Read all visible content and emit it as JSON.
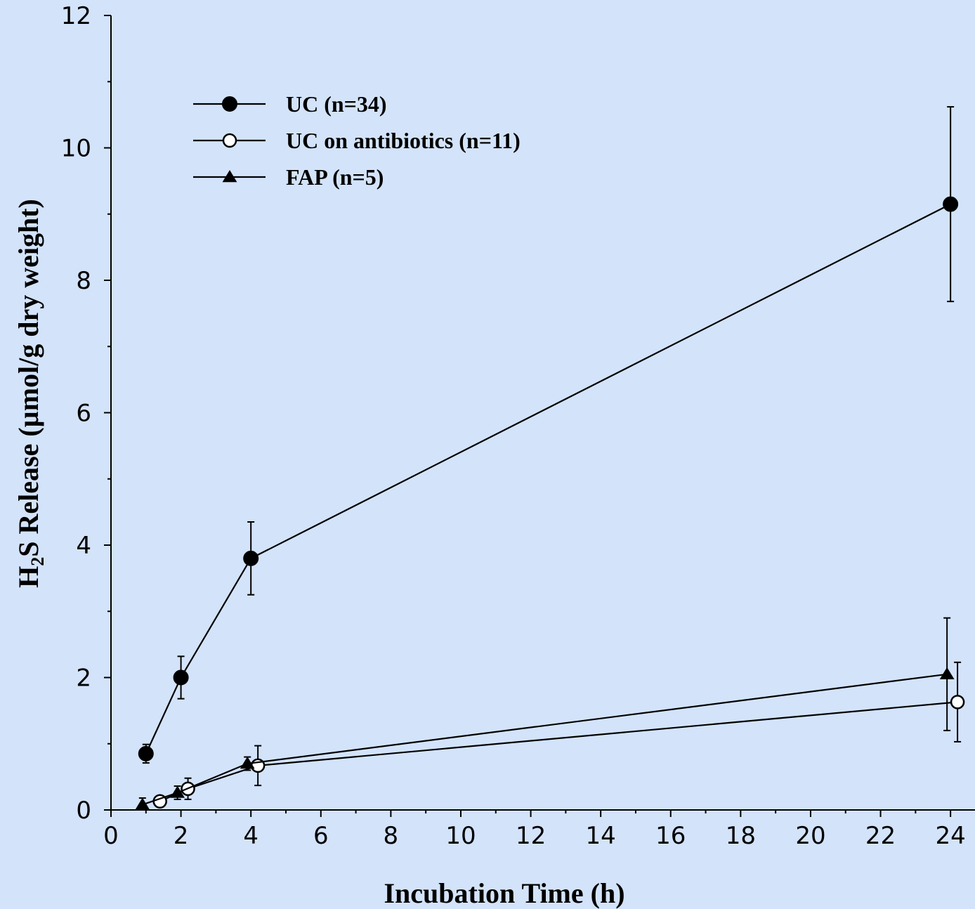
{
  "chart_data": {
    "type": "line",
    "title": "",
    "xlabel": "Incubation Time (h)",
    "ylabel": {
      "prefix": "H",
      "subscript": "2",
      "rest": "S Release (µmol/g dry weight)"
    },
    "xlim": [
      0,
      24.7
    ],
    "ylim": [
      0,
      12
    ],
    "x_ticks": [
      "0",
      "2",
      "4",
      "6",
      "8",
      "10",
      "12",
      "14",
      "16",
      "18",
      "20",
      "22",
      "24"
    ],
    "y_ticks": [
      "0",
      "2",
      "4",
      "6",
      "8",
      "10",
      "12"
    ],
    "x_tick_values": [
      0,
      2,
      4,
      6,
      8,
      10,
      12,
      14,
      16,
      18,
      20,
      22,
      24
    ],
    "y_tick_values": [
      0,
      2,
      4,
      6,
      8,
      10,
      12
    ],
    "grid": false,
    "legend_position": "top-left",
    "series": [
      {
        "name": "UC (n=34)",
        "marker": "filled-circle",
        "points": [
          {
            "x": 1.0,
            "y": 0.85,
            "err": 0.14
          },
          {
            "x": 2.0,
            "y": 2.0,
            "err": 0.32
          },
          {
            "x": 4.0,
            "y": 3.8,
            "err": 0.55
          },
          {
            "x": 24.0,
            "y": 9.15,
            "err": 1.47
          }
        ]
      },
      {
        "name": "UC on antibiotics (n=11)",
        "marker": "open-circle",
        "points": [
          {
            "x": 1.4,
            "y": 0.13,
            "err": 0.08
          },
          {
            "x": 2.2,
            "y": 0.32,
            "err": 0.16
          },
          {
            "x": 4.2,
            "y": 0.67,
            "err": 0.3
          },
          {
            "x": 24.2,
            "y": 1.63,
            "err": 0.6
          }
        ]
      },
      {
        "name": "FAP (n=5)",
        "marker": "filled-triangle",
        "points": [
          {
            "x": 0.9,
            "y": 0.08,
            "err": 0.1
          },
          {
            "x": 1.9,
            "y": 0.26,
            "err": 0.1
          },
          {
            "x": 3.9,
            "y": 0.7,
            "err": 0.1
          },
          {
            "x": 23.9,
            "y": 2.05,
            "err": 0.85
          }
        ]
      }
    ]
  }
}
